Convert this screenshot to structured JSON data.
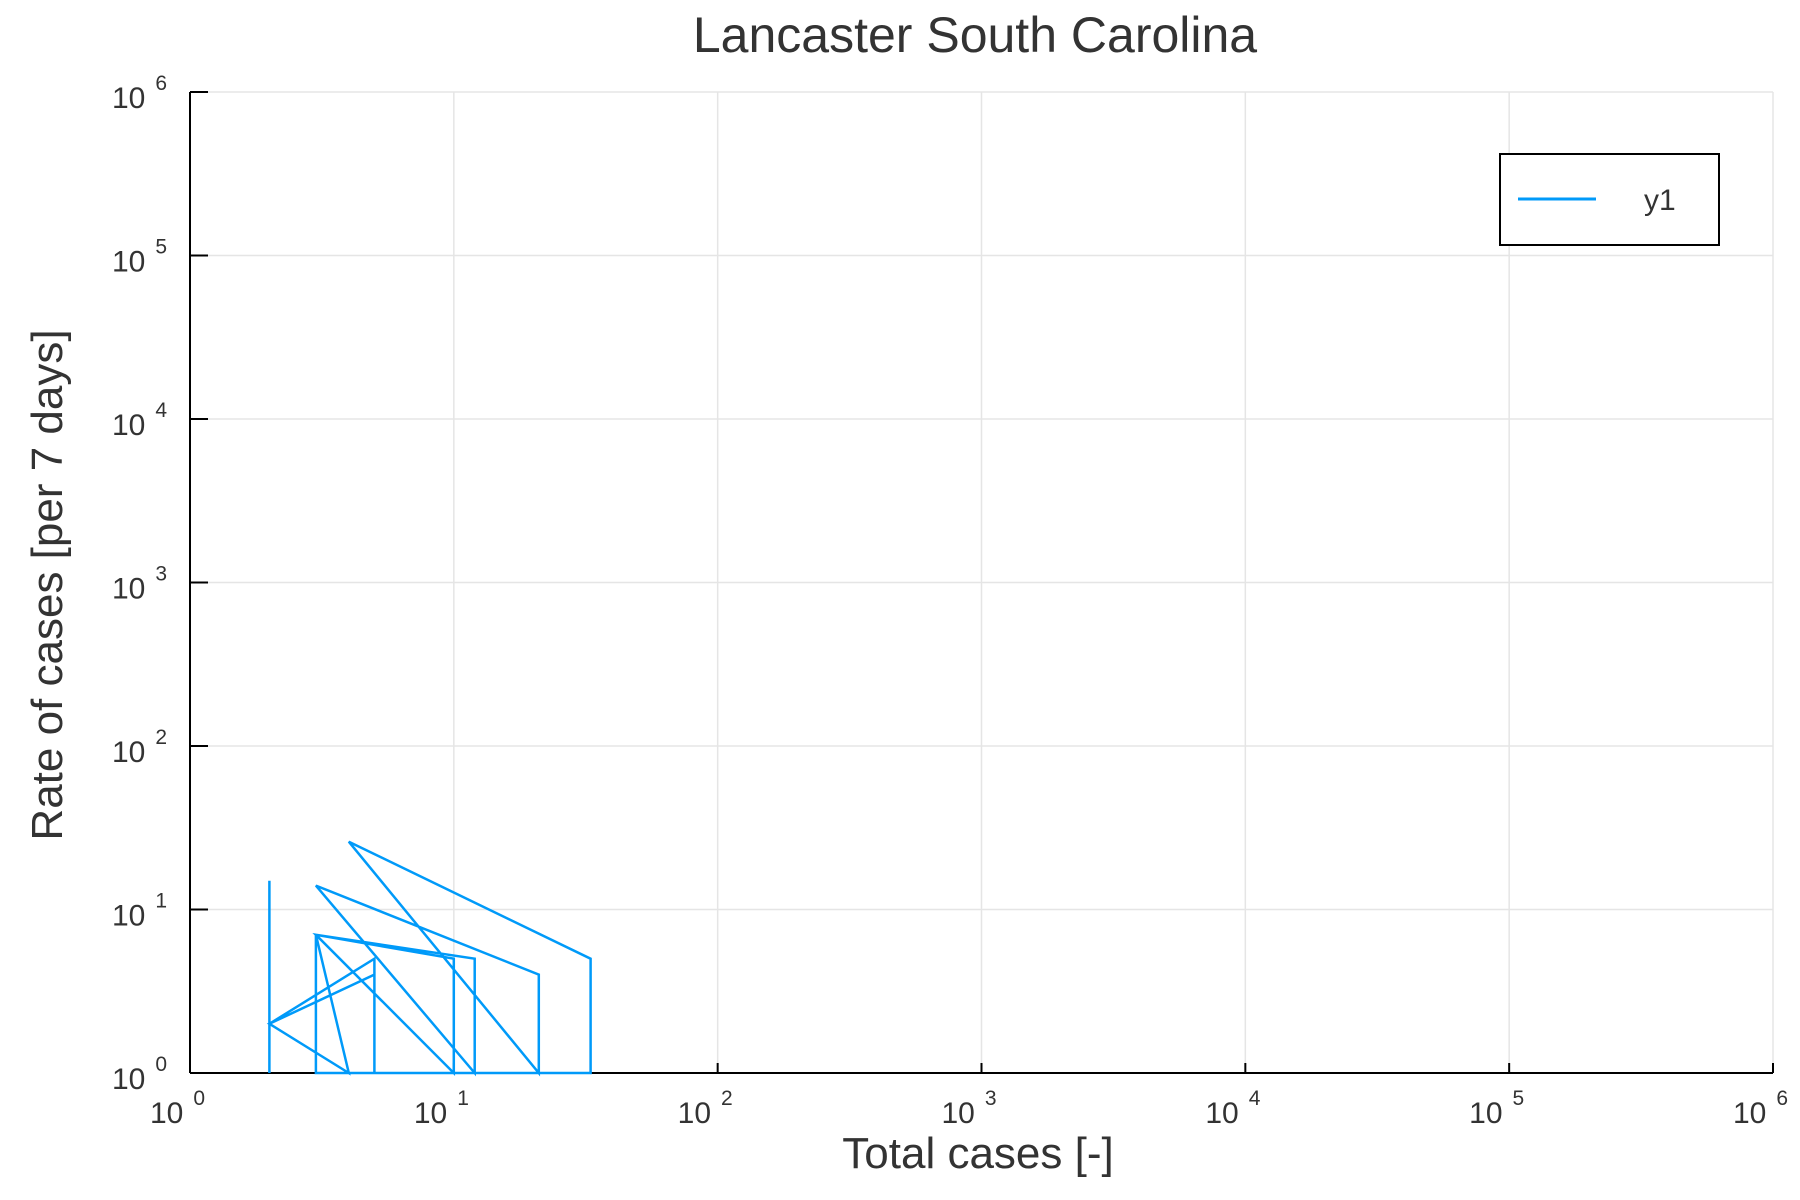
{
  "chart_data": {
    "type": "line",
    "title": "Lancaster South Carolina",
    "xlabel": "Total cases [-]",
    "ylabel": "Rate of cases [per 7 days]",
    "x_scale": "log",
    "y_scale": "log",
    "xlim": [
      1,
      1000000
    ],
    "ylim": [
      1,
      1000000
    ],
    "grid": true,
    "legend_position": "top-right",
    "x_ticks": [
      {
        "base": "10",
        "exp": "0",
        "value": 1
      },
      {
        "base": "10",
        "exp": "1",
        "value": 10
      },
      {
        "base": "10",
        "exp": "2",
        "value": 100
      },
      {
        "base": "10",
        "exp": "3",
        "value": 1000
      },
      {
        "base": "10",
        "exp": "4",
        "value": 10000
      },
      {
        "base": "10",
        "exp": "5",
        "value": 100000
      },
      {
        "base": "10",
        "exp": "6",
        "value": 1000000
      }
    ],
    "y_ticks": [
      {
        "base": "10",
        "exp": "0",
        "value": 1
      },
      {
        "base": "10",
        "exp": "1",
        "value": 10
      },
      {
        "base": "10",
        "exp": "2",
        "value": 100
      },
      {
        "base": "10",
        "exp": "3",
        "value": 1000
      },
      {
        "base": "10",
        "exp": "4",
        "value": 10000
      },
      {
        "base": "10",
        "exp": "5",
        "value": 100000
      },
      {
        "base": "10",
        "exp": "6",
        "value": 1000000
      }
    ],
    "series": [
      {
        "name": "y1",
        "color": "#009af9",
        "points": [
          [
            2,
            15
          ],
          [
            2,
            1
          ],
          [
            2,
            2
          ],
          [
            5,
            5
          ],
          [
            5,
            1
          ],
          [
            5,
            4
          ],
          [
            2,
            2
          ],
          [
            4,
            1
          ],
          [
            3,
            7
          ],
          [
            10,
            5
          ],
          [
            10,
            1
          ],
          [
            3,
            7
          ],
          [
            12,
            5
          ],
          [
            12,
            1
          ],
          [
            3,
            14
          ],
          [
            21,
            4
          ],
          [
            21,
            1
          ],
          [
            4,
            26
          ],
          [
            33,
            5
          ],
          [
            33,
            1
          ],
          [
            3,
            1
          ],
          [
            3,
            7
          ]
        ]
      }
    ]
  }
}
